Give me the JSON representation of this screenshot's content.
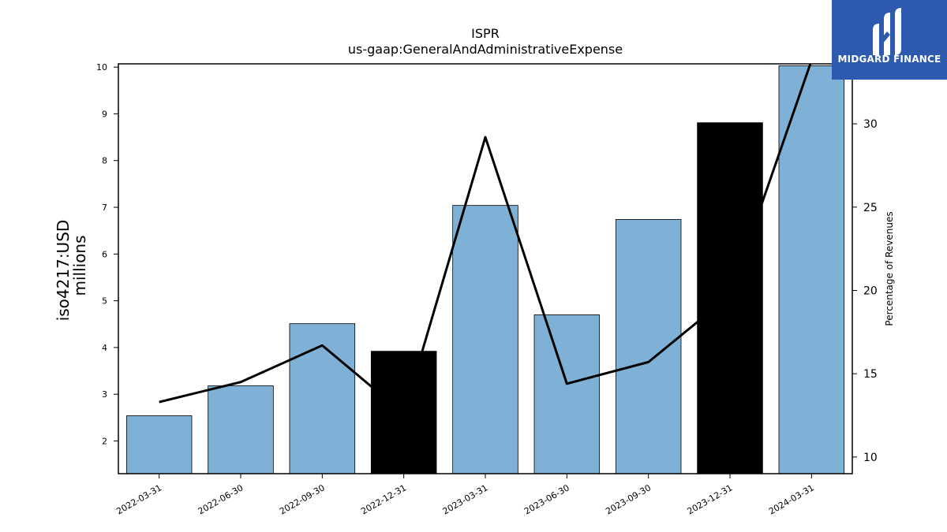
{
  "chart_data": {
    "type": "bar",
    "title": "ISPR",
    "subtitle": "us-gaap:GeneralAndAdministrativeExpense",
    "ylabel": "iso4217:USD",
    "ylabel_line2": "millions",
    "y2label": "Percentage of Revenues",
    "categories": [
      "2022-03-31",
      "2022-06-30",
      "2022-09-30",
      "2022-12-31",
      "2023-03-31",
      "2023-06-30",
      "2023-09-30",
      "2023-12-31",
      "2024-03-31"
    ],
    "values": [
      2.54,
      3.18,
      4.51,
      3.92,
      7.04,
      4.7,
      6.74,
      8.81,
      10.03
    ],
    "bar_colors": [
      "#7fb0d5",
      "#7fb0d5",
      "#7fb0d5",
      "#000000",
      "#7fb0d5",
      "#7fb0d5",
      "#7fb0d5",
      "#000000",
      "#7fb0d5"
    ],
    "line_values": [
      13.3,
      14.5,
      16.7,
      12.6,
      29.2,
      14.4,
      15.7,
      19.7,
      33.8
    ],
    "ylim": [
      1.3,
      10.07
    ],
    "y2lim": [
      9.0,
      33.6
    ],
    "yticks": [
      2,
      3,
      4,
      5,
      6,
      7,
      8,
      9,
      10
    ],
    "y2ticks": [
      10,
      15,
      20,
      25,
      30
    ],
    "grid": false
  },
  "colors": {
    "bar": "#7fb0d5",
    "highlight": "#000000",
    "line": "#000000",
    "logo_bg": "#2d5aae"
  },
  "logo": {
    "text": "MIDGARD FINANCE",
    "icon": "midgard-m-logo-icon"
  }
}
